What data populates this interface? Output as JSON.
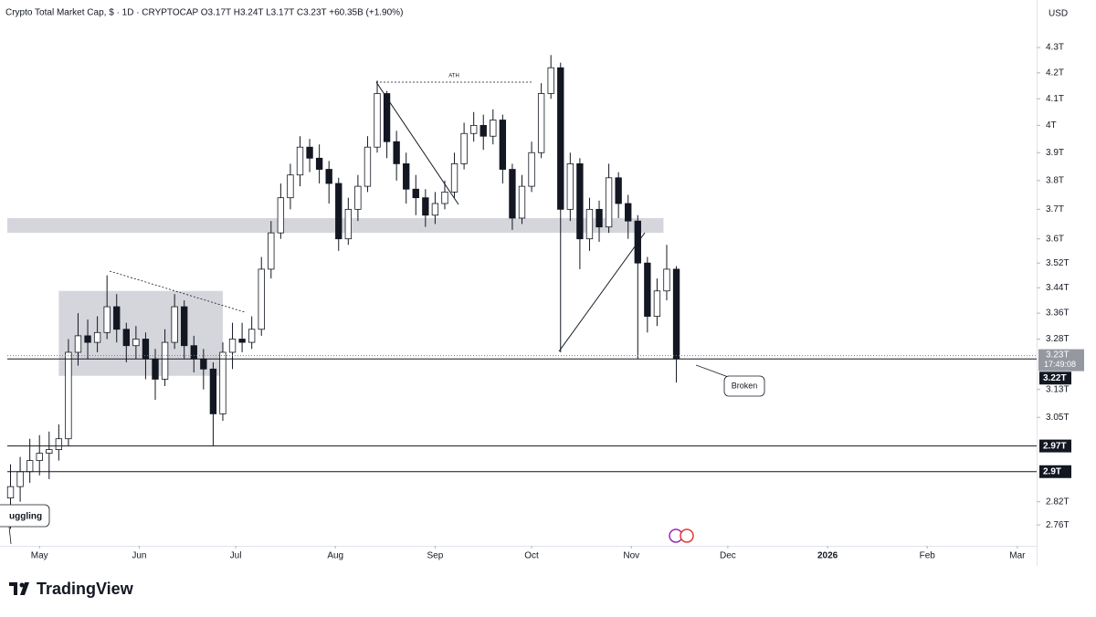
{
  "header": {
    "title": "Crypto Total Market Cap, $ · 1D · CRYPTOCAP  O3.17T  H3.24T  L3.17T  C3.23T  +60.35B (+1.90%)",
    "currency": "USD"
  },
  "chart_data": {
    "type": "candlestick",
    "log": true,
    "x": [
      -9,
      -6,
      -3,
      0,
      3,
      6,
      9,
      12,
      15,
      18,
      21,
      24,
      27,
      30,
      33,
      36,
      39,
      42,
      45,
      48,
      51,
      54,
      57,
      60,
      63,
      66,
      69,
      72,
      75,
      78,
      81,
      84,
      87,
      90,
      93,
      96,
      99,
      102,
      105,
      108,
      111,
      114,
      117,
      120,
      123,
      126,
      129,
      132,
      135,
      138,
      141,
      144,
      147,
      150,
      153,
      156,
      159,
      162,
      165,
      168,
      171,
      174,
      177,
      180,
      183,
      186,
      189,
      192,
      195,
      198
    ],
    "open": [
      2.83,
      2.86,
      2.9,
      2.93,
      2.95,
      2.96,
      2.99,
      3.24,
      3.29,
      3.27,
      3.3,
      3.38,
      3.31,
      3.26,
      3.28,
      3.22,
      3.16,
      3.27,
      3.38,
      3.26,
      3.22,
      3.19,
      3.06,
      3.24,
      3.28,
      3.27,
      3.31,
      3.5,
      3.62,
      3.74,
      3.82,
      3.92,
      3.88,
      3.84,
      3.79,
      3.6,
      3.7,
      3.78,
      3.92,
      4.12,
      3.94,
      3.86,
      3.77,
      3.74,
      3.68,
      3.72,
      3.76,
      3.86,
      3.97,
      4.0,
      3.96,
      4.02,
      3.84,
      3.67,
      3.78,
      3.9,
      4.12,
      4.22,
      3.7,
      3.86,
      3.6,
      3.7,
      3.64,
      3.81,
      3.72,
      3.66,
      3.52,
      3.35,
      3.43,
      3.5
    ],
    "high": [
      2.92,
      2.94,
      2.99,
      3.0,
      3.01,
      3.03,
      3.28,
      3.36,
      3.34,
      3.35,
      3.48,
      3.42,
      3.33,
      3.32,
      3.3,
      3.25,
      3.31,
      3.42,
      3.4,
      3.29,
      3.25,
      3.21,
      3.27,
      3.33,
      3.33,
      3.35,
      3.54,
      3.66,
      3.79,
      3.86,
      3.96,
      3.95,
      3.93,
      3.87,
      3.81,
      3.74,
      3.82,
      3.96,
      4.17,
      4.13,
      3.98,
      3.9,
      3.82,
      3.77,
      3.76,
      3.8,
      3.9,
      4.01,
      4.05,
      4.04,
      4.06,
      4.04,
      3.86,
      3.82,
      3.94,
      4.16,
      4.27,
      4.24,
      3.9,
      3.88,
      3.74,
      3.73,
      3.86,
      3.83,
      3.75,
      3.68,
      3.54,
      3.47,
      3.58,
      3.51
    ],
    "low": [
      2.75,
      2.82,
      2.87,
      2.89,
      2.88,
      2.93,
      2.97,
      3.2,
      3.22,
      3.24,
      3.28,
      3.27,
      3.21,
      3.22,
      3.16,
      3.1,
      3.14,
      3.25,
      3.22,
      3.18,
      3.13,
      2.97,
      3.04,
      3.19,
      3.24,
      3.25,
      3.29,
      3.47,
      3.6,
      3.7,
      3.78,
      3.83,
      3.79,
      3.72,
      3.56,
      3.58,
      3.66,
      3.76,
      3.9,
      3.88,
      3.8,
      3.72,
      3.68,
      3.64,
      3.65,
      3.7,
      3.74,
      3.84,
      3.94,
      3.91,
      3.93,
      3.79,
      3.63,
      3.65,
      3.76,
      3.88,
      4.1,
      3.24,
      3.66,
      3.5,
      3.56,
      3.59,
      3.62,
      3.67,
      3.6,
      3.22,
      3.3,
      3.32,
      3.4,
      3.15
    ],
    "close": [
      2.86,
      2.9,
      2.93,
      2.95,
      2.96,
      2.99,
      3.24,
      3.29,
      3.27,
      3.3,
      3.38,
      3.31,
      3.26,
      3.28,
      3.22,
      3.16,
      3.27,
      3.38,
      3.26,
      3.22,
      3.19,
      3.06,
      3.24,
      3.28,
      3.27,
      3.31,
      3.5,
      3.62,
      3.74,
      3.82,
      3.92,
      3.88,
      3.84,
      3.79,
      3.6,
      3.7,
      3.78,
      3.92,
      4.12,
      3.94,
      3.86,
      3.77,
      3.74,
      3.68,
      3.72,
      3.76,
      3.86,
      3.97,
      4.0,
      3.96,
      4.02,
      3.84,
      3.67,
      3.78,
      3.9,
      4.12,
      4.22,
      3.7,
      3.86,
      3.6,
      3.7,
      3.64,
      3.81,
      3.72,
      3.66,
      3.52,
      3.35,
      3.43,
      3.5,
      3.22
    ],
    "colors": {
      "up": "#ffffff",
      "down": "#131722"
    },
    "xlim": [
      -10,
      310
    ],
    "xticks": [
      {
        "value": 0,
        "label": "May"
      },
      {
        "value": 31,
        "label": "Jun"
      },
      {
        "value": 61,
        "label": "Jul"
      },
      {
        "value": 92,
        "label": "Aug"
      },
      {
        "value": 123,
        "label": "Sep"
      },
      {
        "value": 153,
        "label": "Oct"
      },
      {
        "value": 184,
        "label": "Nov"
      },
      {
        "value": 214,
        "label": "Dec"
      },
      {
        "value": 245,
        "label": "2026"
      },
      {
        "value": 276,
        "label": "Feb"
      },
      {
        "value": 304,
        "label": "Mar"
      }
    ],
    "ylim": [
      2.707,
      4.494
    ],
    "yticks": [
      {
        "value": 4.3,
        "label": "4.3T"
      },
      {
        "value": 4.2,
        "label": "4.2T"
      },
      {
        "value": 4.1,
        "label": "4.1T"
      },
      {
        "value": 4,
        "label": "4T"
      },
      {
        "value": 3.9,
        "label": "3.9T"
      },
      {
        "value": 3.8,
        "label": "3.8T"
      },
      {
        "value": 3.7,
        "label": "3.7T"
      },
      {
        "value": 3.6,
        "label": "3.6T"
      },
      {
        "value": 3.52,
        "label": "3.52T"
      },
      {
        "value": 3.44,
        "label": "3.44T"
      },
      {
        "value": 3.36,
        "label": "3.36T"
      },
      {
        "value": 3.28,
        "label": "3.28T"
      },
      {
        "value": 3.13,
        "label": "3.13T"
      },
      {
        "value": 3.05,
        "label": "3.05T"
      },
      {
        "value": 2.82,
        "label": "2.82T"
      },
      {
        "value": 2.76,
        "label": "2.76T"
      }
    ],
    "last_price": {
      "value": 3.23,
      "label": "3.23T",
      "countdown": "17:49:08"
    },
    "levels": [
      {
        "value": 3.22,
        "label": "3.22T"
      },
      {
        "value": 2.97,
        "label": "2.97T"
      },
      {
        "value": 2.9,
        "label": "2.9T"
      }
    ],
    "zones": [
      {
        "x": [
          -10,
          194
        ],
        "y": [
          3.62,
          3.67
        ]
      },
      {
        "x": [
          6,
          57
        ],
        "y": [
          3.17,
          3.43
        ]
      }
    ],
    "annotations": [
      "ATH",
      "Broken",
      "uggling"
    ]
  },
  "footer": {
    "brand": "TradingView"
  }
}
